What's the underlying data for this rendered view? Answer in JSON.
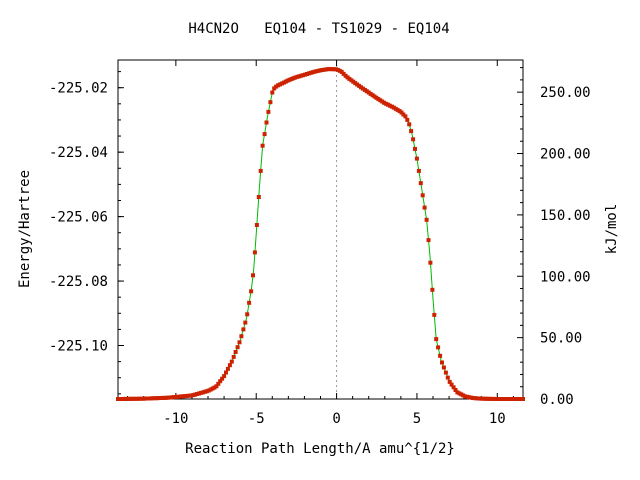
{
  "chart_data": {
    "type": "line",
    "title": "H4CN2O   EQ104 - TS1029 - EQ104",
    "xlabel": "Reaction Path Length/A amu^{1/2}",
    "ylabel": "Energy/Hartree",
    "y2label": "kJ/mol",
    "xlim": [
      -13.6,
      11.6
    ],
    "ylim": [
      -225.1166,
      -225.0114
    ],
    "y2lim": [
      0,
      276.2
    ],
    "x_ticks": [
      -10,
      -5,
      0,
      5,
      10
    ],
    "x_tick_labels": [
      "-10",
      "-5",
      "0",
      "5",
      "10"
    ],
    "y_ticks": [
      -225.02,
      -225.04,
      -225.06,
      -225.08,
      -225.1
    ],
    "y_tick_labels": [
      "-225.02",
      "-225.04",
      "-225.06",
      "-225.08",
      "-225.10"
    ],
    "y2_ticks": [
      250,
      200,
      150,
      100,
      50,
      0
    ],
    "y2_tick_labels": [
      "250.00",
      "200.00",
      "150.00",
      "100.00",
      "50.00",
      "0.00"
    ],
    "grid": false,
    "legend": "none",
    "ts_marker_x": 0,
    "series": [
      {
        "line_color": "#00bb00",
        "marker_color": "#cc2200",
        "x": [
          -13.6,
          -12,
          -10.5,
          -9,
          -8,
          -7.5,
          -7,
          -6.5,
          -6,
          -5.6,
          -5.3,
          -5.15,
          -5,
          -4.8,
          -4.6,
          -4.3,
          -4,
          -3.9,
          -3.7,
          -3.4,
          -3,
          -2.5,
          -2,
          -1.5,
          -1,
          -0.5,
          0,
          0.3,
          0.6,
          1,
          1.5,
          2,
          2.5,
          3,
          3.5,
          4,
          4.3,
          4.5,
          4.7,
          5,
          5.3,
          5.6,
          5.8,
          6,
          6.2,
          6.5,
          7,
          7.5,
          8,
          8.5,
          9,
          10,
          11,
          11.6
        ],
        "y": [
          -225.1166,
          -225.1165,
          -225.1162,
          -225.1155,
          -225.1141,
          -225.1128,
          -225.1095,
          -225.1048,
          -225.0985,
          -225.0915,
          -225.0826,
          -225.076,
          -225.0655,
          -225.051,
          -225.038,
          -225.029,
          -225.0215,
          -225.0203,
          -225.0194,
          -225.0187,
          -225.0177,
          -225.0167,
          -225.016,
          -225.0152,
          -225.0146,
          -225.0142,
          -225.0143,
          -225.015,
          -225.0165,
          -225.018,
          -225.0198,
          -225.0215,
          -225.0232,
          -225.0248,
          -225.026,
          -225.0275,
          -225.029,
          -225.031,
          -225.0345,
          -225.042,
          -225.0515,
          -225.061,
          -225.0715,
          -225.0855,
          -225.098,
          -225.1045,
          -225.111,
          -225.1145,
          -225.1158,
          -225.1163,
          -225.1165,
          -225.1166,
          -225.1166,
          -225.1166
        ]
      }
    ]
  }
}
